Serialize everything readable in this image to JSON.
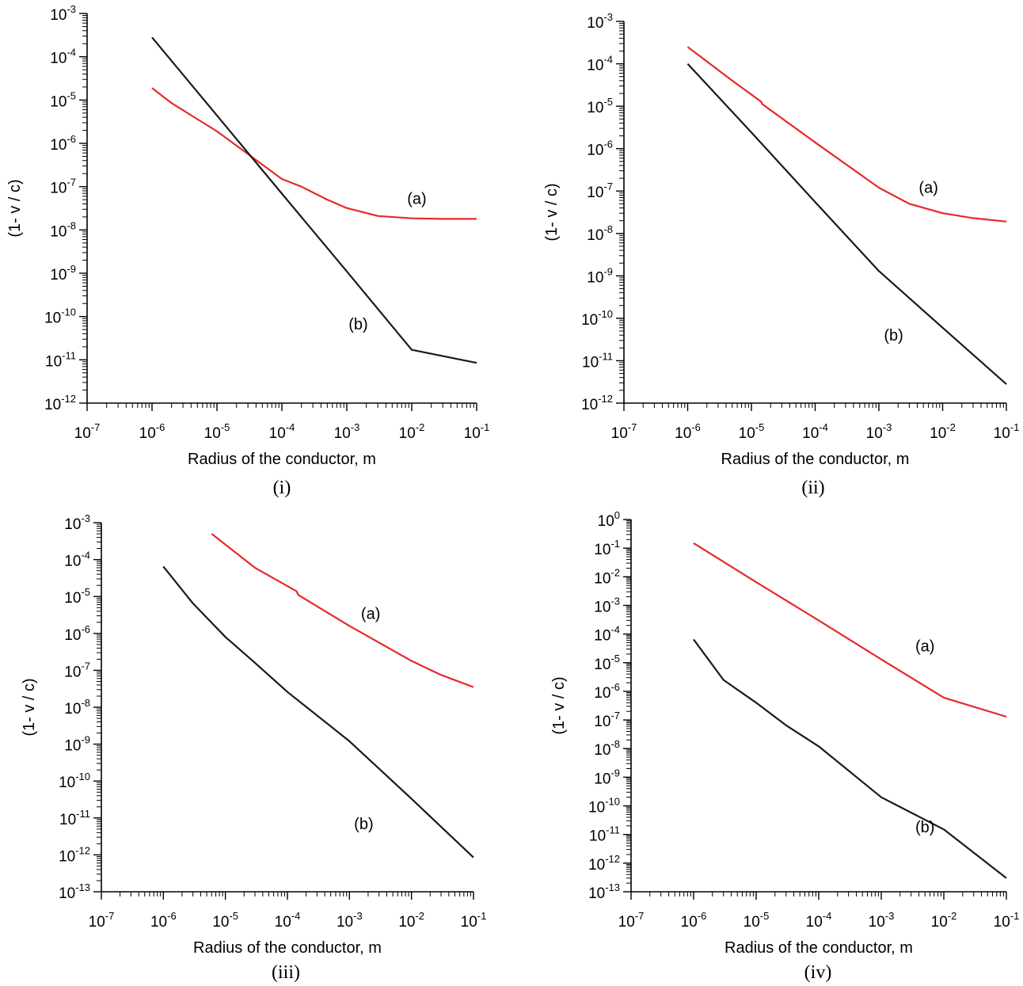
{
  "chart_data": [
    {
      "type": "line",
      "caption": "(i)",
      "xlabel": "Radius of the conductor, m",
      "ylabel": "(1- v / c)",
      "x_scale": "log",
      "y_scale": "log",
      "xlim": [
        1e-07,
        0.1
      ],
      "ylim": [
        1e-12,
        0.001
      ],
      "x_tick_labels": [
        "10-7",
        "10-6",
        "10-5",
        "10-4",
        "10-3",
        "10-2",
        "10-1"
      ],
      "y_tick_labels": [
        "10-12",
        "10-11",
        "10-10",
        "10-9",
        "10-8",
        "10-7",
        "10-6",
        "10-5",
        "10-4",
        "10-3"
      ],
      "grid": false,
      "legend": "none",
      "series": [
        {
          "name": "(a)",
          "color": "#e8282b",
          "x": [
            1e-06,
            2e-06,
            1e-05,
            0.0001,
            0.0002,
            0.0005,
            0.001,
            0.003,
            0.01,
            0.03,
            0.1
          ],
          "y": [
            1.9e-05,
            8.5e-06,
            1.9e-06,
            1.5e-07,
            1e-07,
            5e-08,
            3.2e-08,
            2.1e-08,
            1.85e-08,
            1.8e-08,
            1.8e-08
          ]
        },
        {
          "name": "(b)",
          "color": "#1a1a1a",
          "x": [
            1e-06,
            1e-05,
            0.0001,
            0.001,
            0.01,
            0.1
          ],
          "y": [
            0.00028,
            4.4e-06,
            6.9e-08,
            1.1e-09,
            1.7e-11,
            8.5e-12
          ]
        }
      ],
      "annotations": [
        {
          "text": "(a)",
          "x": 0.012,
          "y": 4e-08
        },
        {
          "text": "(b)",
          "x": 0.0015,
          "y": 5e-11
        }
      ]
    },
    {
      "type": "line",
      "caption": "(ii)",
      "xlabel": "Radius of the conductor, m",
      "ylabel": "(1- v / c)",
      "x_scale": "log",
      "y_scale": "log",
      "xlim": [
        1e-07,
        0.1
      ],
      "ylim": [
        1e-12,
        0.001
      ],
      "x_tick_labels": [
        "10-7",
        "10-6",
        "10-5",
        "10-4",
        "10-3",
        "10-2",
        "10-1"
      ],
      "y_tick_labels": [
        "10-12",
        "10-11",
        "10-10",
        "10-9",
        "10-8",
        "10-7",
        "10-6",
        "10-5",
        "10-4",
        "10-3"
      ],
      "grid": false,
      "legend": "none",
      "series": [
        {
          "name": "(a)",
          "color": "#e8282b",
          "x": [
            1e-06,
            5e-06,
            1.4e-05,
            1.5e-05,
            0.0001,
            0.001,
            0.003,
            0.01,
            0.03,
            0.1
          ],
          "y": [
            0.00025,
            4e-05,
            1.3e-05,
            1.1e-05,
            1.4e-06,
            1.2e-07,
            5e-08,
            3e-08,
            2.3e-08,
            1.9e-08
          ]
        },
        {
          "name": "(b)",
          "color": "#1a1a1a",
          "x": [
            1e-06,
            1e-05,
            0.0001,
            0.001,
            0.01,
            0.1
          ],
          "y": [
            0.0001,
            2.4e-06,
            5.5e-08,
            1.3e-09,
            6e-11,
            2.8e-12
          ]
        }
      ],
      "annotations": [
        {
          "text": "(a)",
          "x": 0.006,
          "y": 9e-08
        },
        {
          "text": "(b)",
          "x": 0.0017,
          "y": 3e-11
        }
      ]
    },
    {
      "type": "line",
      "caption": "(iii)",
      "xlabel": "Radius of the conductor, m",
      "ylabel": "(1- v / c)",
      "x_scale": "log",
      "y_scale": "log",
      "xlim": [
        1e-07,
        0.1
      ],
      "ylim": [
        1e-13,
        0.001
      ],
      "x_tick_labels": [
        "10-7",
        "10-6",
        "10-5",
        "10-4",
        "10-3",
        "10-2",
        "10-1"
      ],
      "y_tick_labels": [
        "10-13",
        "10-12",
        "10-11",
        "10-10",
        "10-9",
        "10-8",
        "10-7",
        "10-6",
        "10-5",
        "10-4",
        "10-3"
      ],
      "grid": false,
      "legend": "none",
      "series": [
        {
          "name": "(a)",
          "color": "#e8282b",
          "x": [
            6e-06,
            3e-05,
            0.00014,
            0.00015,
            0.001,
            0.01,
            0.03,
            0.1
          ],
          "y": [
            0.0005,
            6e-05,
            1.4e-05,
            1.1e-05,
            1.6e-06,
            1.8e-07,
            7.5e-08,
            3.5e-08
          ]
        },
        {
          "name": "(b)",
          "color": "#1a1a1a",
          "x": [
            1e-06,
            3e-06,
            1e-05,
            3e-05,
            0.0001,
            0.001,
            0.01,
            0.1
          ],
          "y": [
            6.5e-05,
            6.5e-06,
            8e-07,
            1.6e-07,
            2.6e-08,
            1.2e-09,
            3.3e-11,
            8.5e-13
          ]
        }
      ],
      "annotations": [
        {
          "text": "(a)",
          "x": 0.0022,
          "y": 2.5e-06
        },
        {
          "text": "(b)",
          "x": 0.0017,
          "y": 5e-12
        }
      ]
    },
    {
      "type": "line",
      "caption": "(iv)",
      "xlabel": "Radius of the conductor, m",
      "ylabel": "(1- v / c)",
      "x_scale": "log",
      "y_scale": "log",
      "xlim": [
        1e-07,
        0.1
      ],
      "ylim": [
        1e-13,
        1
      ],
      "x_tick_labels": [
        "10-7",
        "10-6",
        "10-5",
        "10-4",
        "10-3",
        "10-2",
        "10-1"
      ],
      "y_tick_labels": [
        "10-13",
        "10-12",
        "10-11",
        "10-10",
        "10-9",
        "10-8",
        "10-7",
        "10-6",
        "10-5",
        "10-4",
        "10-3",
        "10-2",
        "10-1",
        "100"
      ],
      "grid": false,
      "legend": "none",
      "series": [
        {
          "name": "(a)",
          "color": "#e8282b",
          "x": [
            1e-06,
            1e-05,
            0.0001,
            0.001,
            0.01,
            0.1
          ],
          "y": [
            0.15,
            0.0065,
            0.0003,
            1.3e-05,
            6e-07,
            1.3e-07
          ]
        },
        {
          "name": "(b)",
          "color": "#1a1a1a",
          "x": [
            1e-06,
            3e-06,
            1e-05,
            3e-05,
            0.0001,
            0.001,
            0.01,
            0.1
          ],
          "y": [
            6.5e-05,
            2.5e-06,
            4e-07,
            6.5e-08,
            1.2e-08,
            2e-10,
            1.5e-11,
            3e-13
          ]
        }
      ],
      "annotations": [
        {
          "text": "(a)",
          "x": 0.005,
          "y": 2.5e-05
        },
        {
          "text": "(b)",
          "x": 0.005,
          "y": 1.2e-11
        }
      ]
    }
  ]
}
